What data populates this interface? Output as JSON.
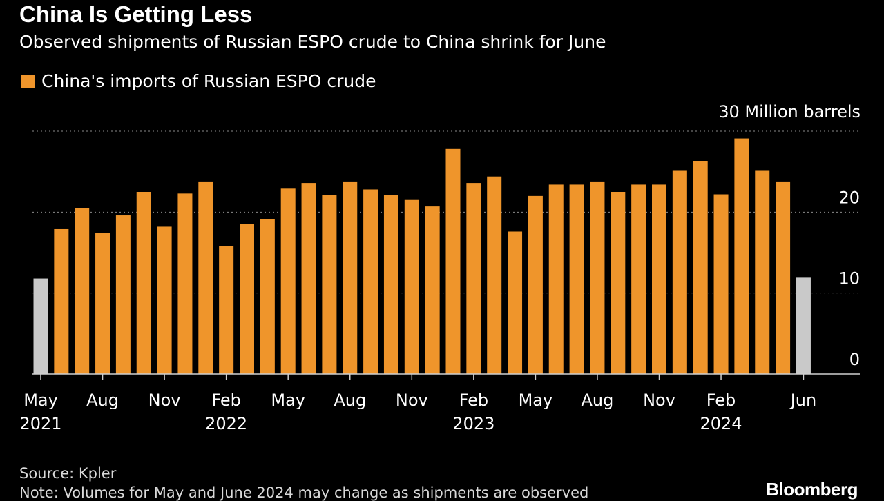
{
  "title": "China Is Getting Less",
  "subtitle": "Observed shipments of Russian ESPO crude to China shrink for June",
  "source": "Source: Kpler",
  "note": "Note: Volumes for May and June 2024 may change as shipments are observed",
  "brand": "Bloomberg",
  "colors": {
    "bar": "#ef952b",
    "highlight": "#c9c9c9",
    "grid": "#8a8a8a",
    "axis": "#cfcfcf"
  },
  "chart_data": {
    "type": "bar",
    "legend": {
      "label": "China's imports of Russian ESPO crude",
      "position": "top-left"
    },
    "unit_label": "30 Million barrels",
    "y_ticks": [
      "0",
      "10",
      "20"
    ],
    "ylim": [
      0,
      30
    ],
    "grid": true,
    "x_tick_labels": [
      {
        "month": "May",
        "year": "2021",
        "index": 0
      },
      {
        "month": "Aug",
        "year": "",
        "index": 3
      },
      {
        "month": "Nov",
        "year": "",
        "index": 6
      },
      {
        "month": "Feb",
        "year": "2022",
        "index": 9
      },
      {
        "month": "May",
        "year": "",
        "index": 12
      },
      {
        "month": "Aug",
        "year": "",
        "index": 15
      },
      {
        "month": "Nov",
        "year": "",
        "index": 18
      },
      {
        "month": "Feb",
        "year": "2023",
        "index": 21
      },
      {
        "month": "May",
        "year": "",
        "index": 24
      },
      {
        "month": "Aug",
        "year": "",
        "index": 27
      },
      {
        "month": "Nov",
        "year": "",
        "index": 30
      },
      {
        "month": "Feb",
        "year": "2024",
        "index": 33
      },
      {
        "month": "Jun",
        "year": "",
        "index": 37
      }
    ],
    "categories": [
      "May 2021",
      "Jun 2021",
      "Jul 2021",
      "Aug 2021",
      "Sep 2021",
      "Oct 2021",
      "Nov 2021",
      "Dec 2021",
      "Jan 2022",
      "Feb 2022",
      "Mar 2022",
      "Apr 2022",
      "May 2022",
      "Jun 2022",
      "Jul 2022",
      "Aug 2022",
      "Sep 2022",
      "Oct 2022",
      "Nov 2022",
      "Dec 2022",
      "Jan 2023",
      "Feb 2023",
      "Mar 2023",
      "Apr 2023",
      "May 2023",
      "Jun 2023",
      "Jul 2023",
      "Aug 2023",
      "Sep 2023",
      "Oct 2023",
      "Nov 2023",
      "Dec 2023",
      "Jan 2024",
      "Feb 2024",
      "Mar 2024",
      "Apr 2024",
      "May 2024",
      "Jun 2024"
    ],
    "series": [
      {
        "values": [
          11.8,
          17.9,
          20.5,
          17.4,
          19.6,
          22.5,
          18.2,
          22.3,
          23.7,
          15.8,
          18.5,
          19.1,
          22.9,
          23.6,
          22.1,
          23.7,
          22.8,
          22.1,
          21.5,
          20.7,
          27.8,
          23.6,
          24.4,
          17.6,
          22.0,
          23.4,
          23.4,
          23.7,
          22.5,
          23.4,
          23.4,
          25.1,
          26.3,
          22.2,
          29.1,
          25.1,
          23.7,
          11.9
        ],
        "highlight": [
          0,
          37
        ]
      }
    ]
  }
}
